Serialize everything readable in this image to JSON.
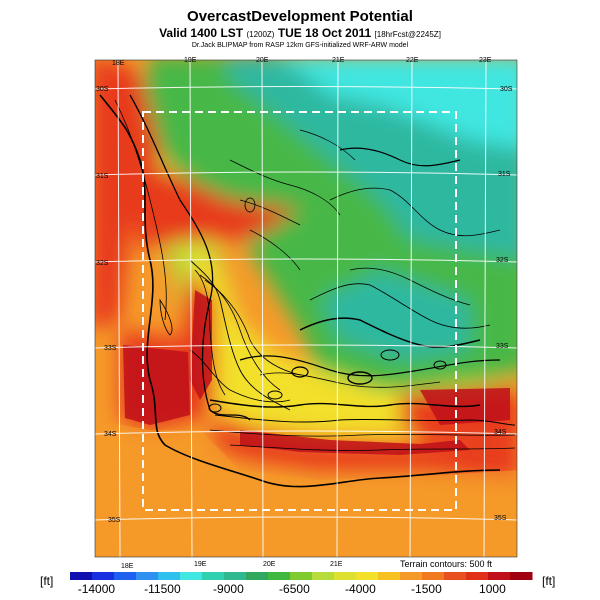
{
  "header": {
    "title": "OvercastDevelopment Potential",
    "subtitle_main": "Valid 1400 LST",
    "subtitle_code": "(1200Z)",
    "subtitle_date": "TUE 18 Oct 2011",
    "subtitle_forecast": "[18hrFcst@2245Z]",
    "credit": "Dr.Jack BLIPMAP from RASP 12km GFS-initialized WRF-ARW model"
  },
  "map": {
    "lon_labels_top": [
      "18E",
      "19E",
      "20E",
      "21E",
      "22E",
      "23E"
    ],
    "lon_labels_bottom": [
      "18E",
      "19E",
      "20E",
      "21E"
    ],
    "lat_labels_left": [
      "30S",
      "31S",
      "32S",
      "33S",
      "34S",
      "35S"
    ],
    "lat_labels_right": [
      "30S",
      "31S",
      "32S",
      "33S",
      "34S",
      "35S"
    ],
    "terrain_note": "Terrain contours: 500 ft",
    "colors": {
      "deep_red": "#c0101a",
      "red": "#e83a1c",
      "orange": "#f59a2a",
      "yellow": "#f2e02a",
      "lime": "#b6dc3a",
      "green": "#46b846",
      "teal": "#2eb8a0",
      "cyan": "#40e6e0"
    }
  },
  "colorbar": {
    "unit_left": "[ft]",
    "unit_right": "[ft]",
    "ticks": [
      "-14000",
      "-11500",
      "-9000",
      "-6500",
      "-4000",
      "-1500",
      "1000"
    ],
    "tick_values": [
      -14000,
      -11500,
      -9000,
      -6500,
      -4000,
      -1500,
      1000
    ],
    "min": -15000,
    "max": 2500,
    "colors": [
      "#1010b0",
      "#1830e0",
      "#2060f0",
      "#3090f0",
      "#30c0f0",
      "#40e6e0",
      "#30d0b0",
      "#30b890",
      "#30a860",
      "#40b840",
      "#80cc30",
      "#b6dc3a",
      "#dde030",
      "#f2e02a",
      "#f5c020",
      "#f59a2a",
      "#f07a20",
      "#e85020",
      "#e03018",
      "#c0101a",
      "#a00010"
    ]
  }
}
